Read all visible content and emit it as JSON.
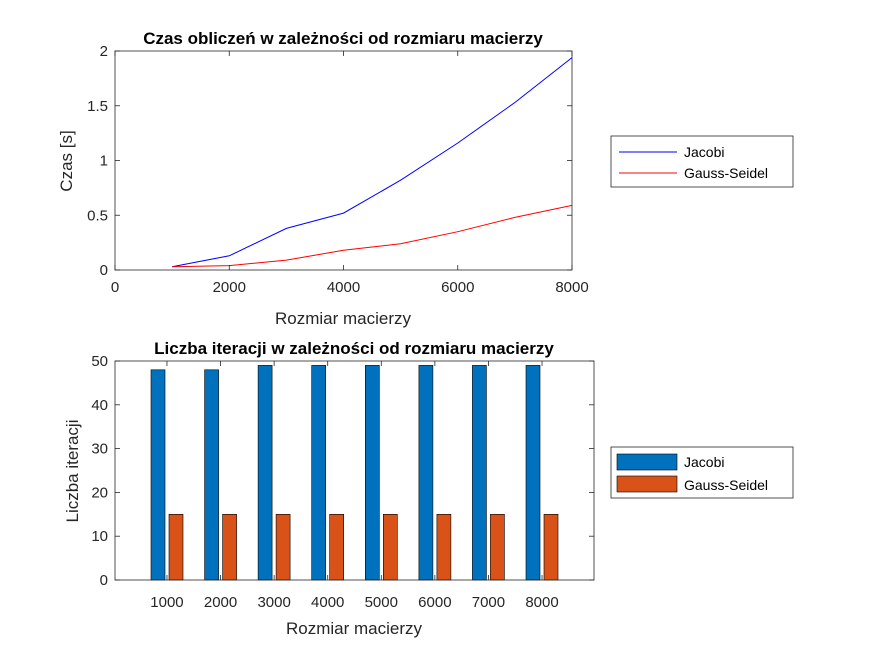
{
  "chart_data": [
    {
      "type": "line",
      "title": "Czas obliczeń w zależności od rozmiaru macierzy",
      "xlabel": "Rozmiar macierzy",
      "ylabel": "Czas [s]",
      "xlim": [
        0,
        8000
      ],
      "ylim": [
        0,
        2
      ],
      "xticks": [
        "0",
        "2000",
        "4000",
        "6000",
        "8000"
      ],
      "yticks": [
        "0",
        "0.5",
        "1",
        "1.5",
        "2"
      ],
      "x": [
        1000,
        2000,
        3000,
        4000,
        5000,
        6000,
        7000,
        8000
      ],
      "series": [
        {
          "name": "Jacobi",
          "color": "#0000ff",
          "values": [
            0.03,
            0.13,
            0.38,
            0.52,
            0.82,
            1.16,
            1.53,
            1.94
          ]
        },
        {
          "name": "Gauss-Seidel",
          "color": "#ff0000",
          "values": [
            0.03,
            0.04,
            0.09,
            0.18,
            0.24,
            0.35,
            0.48,
            0.59
          ]
        }
      ],
      "grid": false,
      "legend_position": "outside-right"
    },
    {
      "type": "bar",
      "title": "Liczba iteracji w zależności od rozmiaru macierzy",
      "xlabel": "Rozmiar macierzy",
      "ylabel": "Liczba iteracji",
      "ylim": [
        0,
        50
      ],
      "yticks": [
        "0",
        "10",
        "20",
        "30",
        "40",
        "50"
      ],
      "categories": [
        "1000",
        "2000",
        "3000",
        "4000",
        "5000",
        "6000",
        "7000",
        "8000"
      ],
      "series": [
        {
          "name": "Jacobi",
          "color": "#0072bd",
          "values": [
            48,
            48,
            49,
            49,
            49,
            49,
            49,
            49
          ]
        },
        {
          "name": "Gauss-Seidel",
          "color": "#d95319",
          "values": [
            15,
            15,
            15,
            15,
            15,
            15,
            15,
            15
          ]
        }
      ],
      "grid": false,
      "legend_position": "outside-right"
    }
  ]
}
